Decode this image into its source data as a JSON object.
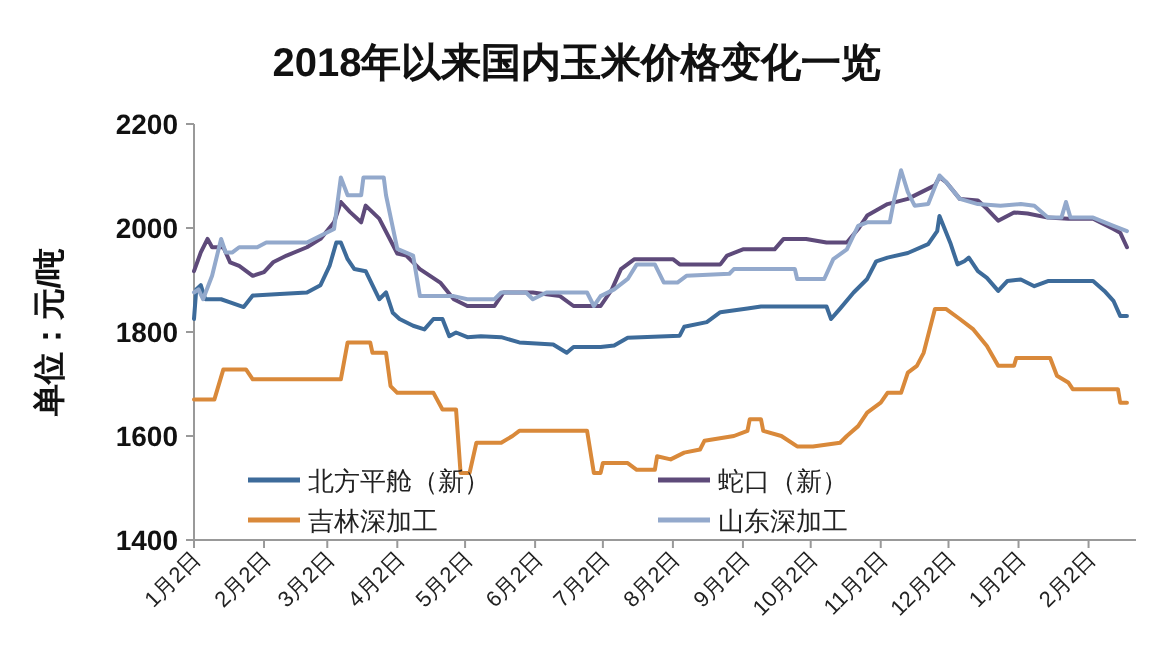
{
  "chart_data": {
    "type": "line",
    "title": "2018年以来国内玉米价格变化一览",
    "ylabel": "单位：元/吨",
    "xlim": [
      "2018-01-02",
      "2019-02-23"
    ],
    "xticks": [
      {
        "value": "2018-01-02",
        "label": "1月2日"
      },
      {
        "value": "2018-02-02",
        "label": "2月2日"
      },
      {
        "value": "2018-03-02",
        "label": "3月2日"
      },
      {
        "value": "2018-04-02",
        "label": "4月2日"
      },
      {
        "value": "2018-05-02",
        "label": "5月2日"
      },
      {
        "value": "2018-06-02",
        "label": "6月2日"
      },
      {
        "value": "2018-07-02",
        "label": "7月2日"
      },
      {
        "value": "2018-08-02",
        "label": "8月2日"
      },
      {
        "value": "2018-09-02",
        "label": "9月2日"
      },
      {
        "value": "2018-10-02",
        "label": "10月2日"
      },
      {
        "value": "2018-11-02",
        "label": "11月2日"
      },
      {
        "value": "2018-12-02",
        "label": "12月2日"
      },
      {
        "value": "2019-01-02",
        "label": "1月2日"
      },
      {
        "value": "2019-02-02",
        "label": "2月2日"
      }
    ],
    "ylim": [
      1400,
      2200
    ],
    "yticks": [
      1400,
      1600,
      1800,
      2000,
      2200
    ],
    "grid": false,
    "legend": "bottom",
    "marker": "none",
    "line_style": "solid",
    "series": [
      {
        "name": "北方平舱（新）",
        "color": "#3d6b9a",
        "x": [
          "2018-01-02",
          "2018-01-03",
          "2018-01-05",
          "2018-01-07",
          "2018-01-14",
          "2018-01-18",
          "2018-01-24",
          "2018-01-28",
          "2018-02-09",
          "2018-02-21",
          "2018-02-27",
          "2018-03-03",
          "2018-03-06",
          "2018-03-08",
          "2018-03-11",
          "2018-03-14",
          "2018-03-19",
          "2018-03-22",
          "2018-03-25",
          "2018-03-28",
          "2018-03-31",
          "2018-04-03",
          "2018-04-09",
          "2018-04-14",
          "2018-04-18",
          "2018-04-22",
          "2018-04-25",
          "2018-04-28",
          "2018-05-03",
          "2018-05-09",
          "2018-05-18",
          "2018-05-26",
          "2018-06-10",
          "2018-06-16",
          "2018-06-19",
          "2018-07-01",
          "2018-07-07",
          "2018-07-13",
          "2018-08-05",
          "2018-08-07",
          "2018-08-17",
          "2018-08-23",
          "2018-09-04",
          "2018-09-10",
          "2018-10-09",
          "2018-10-11",
          "2018-10-15",
          "2018-10-21",
          "2018-10-27",
          "2018-10-31",
          "2018-11-05",
          "2018-11-14",
          "2018-11-23",
          "2018-11-27",
          "2018-11-28",
          "2018-12-03",
          "2018-12-06",
          "2018-12-09",
          "2018-12-11",
          "2018-12-15",
          "2018-12-19",
          "2018-12-24",
          "2018-12-28",
          "2019-01-03",
          "2019-01-09",
          "2019-01-15",
          "2019-02-04",
          "2019-02-09",
          "2019-02-13",
          "2019-02-16",
          "2019-02-19"
        ],
        "values": [
          1825,
          1882,
          1890,
          1863,
          1863,
          1857,
          1848,
          1870,
          1873,
          1876,
          1890,
          1927,
          1972,
          1972,
          1940,
          1921,
          1917,
          1890,
          1863,
          1876,
          1837,
          1825,
          1812,
          1805,
          1825,
          1825,
          1792,
          1799,
          1790,
          1792,
          1790,
          1780,
          1776,
          1760,
          1771,
          1771,
          1774,
          1789,
          1793,
          1810,
          1819,
          1838,
          1845,
          1849,
          1849,
          1825,
          1845,
          1876,
          1902,
          1936,
          1943,
          1952,
          1969,
          1994,
          2023,
          1969,
          1930,
          1936,
          1943,
          1917,
          1904,
          1879,
          1898,
          1901,
          1888,
          1898,
          1898,
          1879,
          1860,
          1831,
          1831
        ]
      },
      {
        "name": "蛇口（新）",
        "color": "#5e4a7a",
        "x": [
          "2018-01-02",
          "2018-01-05",
          "2018-01-08",
          "2018-01-10",
          "2018-01-15",
          "2018-01-18",
          "2018-01-22",
          "2018-01-28",
          "2018-02-02",
          "2018-02-06",
          "2018-02-12",
          "2018-02-21",
          "2018-02-27",
          "2018-03-05",
          "2018-03-08",
          "2018-03-12",
          "2018-03-17",
          "2018-03-19",
          "2018-03-25",
          "2018-04-02",
          "2018-04-06",
          "2018-04-12",
          "2018-04-21",
          "2018-04-27",
          "2018-05-03",
          "2018-05-15",
          "2018-05-19",
          "2018-06-01",
          "2018-06-13",
          "2018-06-19",
          "2018-07-01",
          "2018-07-06",
          "2018-07-10",
          "2018-07-16",
          "2018-08-02",
          "2018-08-05",
          "2018-08-23",
          "2018-08-26",
          "2018-09-02",
          "2018-09-16",
          "2018-09-20",
          "2018-09-30",
          "2018-10-09",
          "2018-10-18",
          "2018-10-23",
          "2018-10-27",
          "2018-11-05",
          "2018-11-14",
          "2018-11-20",
          "2018-11-26",
          "2018-11-28",
          "2018-12-01",
          "2018-12-07",
          "2018-12-15",
          "2018-12-19",
          "2018-12-24",
          "2018-12-31",
          "2019-01-06",
          "2019-01-15",
          "2019-01-24",
          "2019-02-04",
          "2019-02-13",
          "2019-02-16",
          "2019-02-19"
        ],
        "values": [
          1917,
          1953,
          1979,
          1963,
          1963,
          1934,
          1927,
          1908,
          1915,
          1934,
          1947,
          1963,
          1979,
          2011,
          2050,
          2031,
          2011,
          2043,
          2018,
          1951,
          1947,
          1921,
          1895,
          1863,
          1850,
          1850,
          1876,
          1876,
          1869,
          1850,
          1850,
          1882,
          1921,
          1940,
          1940,
          1930,
          1930,
          1947,
          1959,
          1959,
          1979,
          1979,
          1972,
          1972,
          1998,
          2024,
          2046,
          2056,
          2069,
          2082,
          2098,
          2088,
          2056,
          2053,
          2037,
          2014,
          2030,
          2028,
          2020,
          2018,
          2018,
          1998,
          1991,
          1963
        ]
      },
      {
        "name": "吉林深加工",
        "color": "#d9893a",
        "x": [
          "2018-01-02",
          "2018-01-11",
          "2018-01-15",
          "2018-01-25",
          "2018-01-28",
          "2018-03-08",
          "2018-03-11",
          "2018-03-21",
          "2018-03-22",
          "2018-03-28",
          "2018-03-30",
          "2018-04-02",
          "2018-04-18",
          "2018-04-22",
          "2018-04-28",
          "2018-04-30",
          "2018-05-04",
          "2018-05-07",
          "2018-05-18",
          "2018-05-23",
          "2018-05-26",
          "2018-06-25",
          "2018-06-28",
          "2018-07-01",
          "2018-07-02",
          "2018-07-13",
          "2018-07-17",
          "2018-07-25",
          "2018-07-26",
          "2018-08-01",
          "2018-08-07",
          "2018-08-14",
          "2018-08-16",
          "2018-08-29",
          "2018-09-04",
          "2018-09-05",
          "2018-09-10",
          "2018-09-11",
          "2018-09-19",
          "2018-09-26",
          "2018-10-03",
          "2018-10-15",
          "2018-10-18",
          "2018-10-23",
          "2018-10-27",
          "2018-11-02",
          "2018-11-05",
          "2018-11-11",
          "2018-11-14",
          "2018-11-18",
          "2018-11-21",
          "2018-11-26",
          "2018-12-01",
          "2018-12-07",
          "2018-12-13",
          "2018-12-19",
          "2018-12-24",
          "2018-12-31",
          "2019-01-01",
          "2019-01-16",
          "2019-01-19",
          "2019-01-24",
          "2019-01-26",
          "2019-02-15",
          "2019-02-16",
          "2019-02-19"
        ],
        "values": [
          1670,
          1670,
          1728,
          1728,
          1709,
          1709,
          1780,
          1780,
          1760,
          1760,
          1696,
          1683,
          1683,
          1651,
          1651,
          1529,
          1529,
          1587,
          1587,
          1600,
          1610,
          1610,
          1529,
          1529,
          1548,
          1548,
          1535,
          1535,
          1561,
          1555,
          1568,
          1574,
          1591,
          1600,
          1610,
          1632,
          1632,
          1610,
          1600,
          1580,
          1580,
          1587,
          1600,
          1619,
          1645,
          1664,
          1683,
          1683,
          1722,
          1735,
          1760,
          1844,
          1844,
          1825,
          1805,
          1773,
          1735,
          1735,
          1750,
          1750,
          1716,
          1703,
          1690,
          1690,
          1664,
          1664
        ]
      },
      {
        "name": "山东深加工",
        "color": "#93a9cc",
        "x": [
          "2018-01-02",
          "2018-01-04",
          "2018-01-06",
          "2018-01-10",
          "2018-01-14",
          "2018-01-16",
          "2018-01-19",
          "2018-01-22",
          "2018-01-30",
          "2018-02-03",
          "2018-02-21",
          "2018-02-27",
          "2018-03-05",
          "2018-03-08",
          "2018-03-11",
          "2018-03-17",
          "2018-03-18",
          "2018-03-27",
          "2018-03-28",
          "2018-04-02",
          "2018-04-09",
          "2018-04-12",
          "2018-04-27",
          "2018-05-03",
          "2018-05-06",
          "2018-05-15",
          "2018-05-18",
          "2018-05-29",
          "2018-06-01",
          "2018-06-07",
          "2018-06-25",
          "2018-06-28",
          "2018-07-01",
          "2018-07-07",
          "2018-07-13",
          "2018-07-17",
          "2018-07-25",
          "2018-07-29",
          "2018-08-04",
          "2018-08-08",
          "2018-08-27",
          "2018-08-29",
          "2018-09-25",
          "2018-09-26",
          "2018-10-08",
          "2018-10-12",
          "2018-10-18",
          "2018-10-23",
          "2018-10-27",
          "2018-11-06",
          "2018-11-08",
          "2018-11-11",
          "2018-11-14",
          "2018-11-17",
          "2018-11-23",
          "2018-11-28",
          "2018-12-01",
          "2018-12-07",
          "2018-12-15",
          "2018-12-25",
          "2019-01-03",
          "2019-01-09",
          "2019-01-15",
          "2019-01-21",
          "2019-01-23",
          "2019-01-25",
          "2019-02-04",
          "2019-02-13",
          "2019-02-19"
        ],
        "values": [
          1876,
          1882,
          1863,
          1908,
          1979,
          1953,
          1953,
          1963,
          1963,
          1972,
          1972,
          1985,
          1998,
          2097,
          2063,
          2063,
          2097,
          2097,
          2063,
          1960,
          1947,
          1869,
          1869,
          1863,
          1863,
          1863,
          1876,
          1876,
          1863,
          1876,
          1876,
          1850,
          1869,
          1882,
          1902,
          1930,
          1930,
          1895,
          1895,
          1908,
          1912,
          1921,
          1921,
          1902,
          1902,
          1940,
          1959,
          2004,
          2011,
          2011,
          2056,
          2111,
          2069,
          2043,
          2046,
          2101,
          2088,
          2056,
          2046,
          2043,
          2046,
          2043,
          2020,
          2020,
          2050,
          2020,
          2020,
          2004,
          1994
        ]
      }
    ]
  }
}
